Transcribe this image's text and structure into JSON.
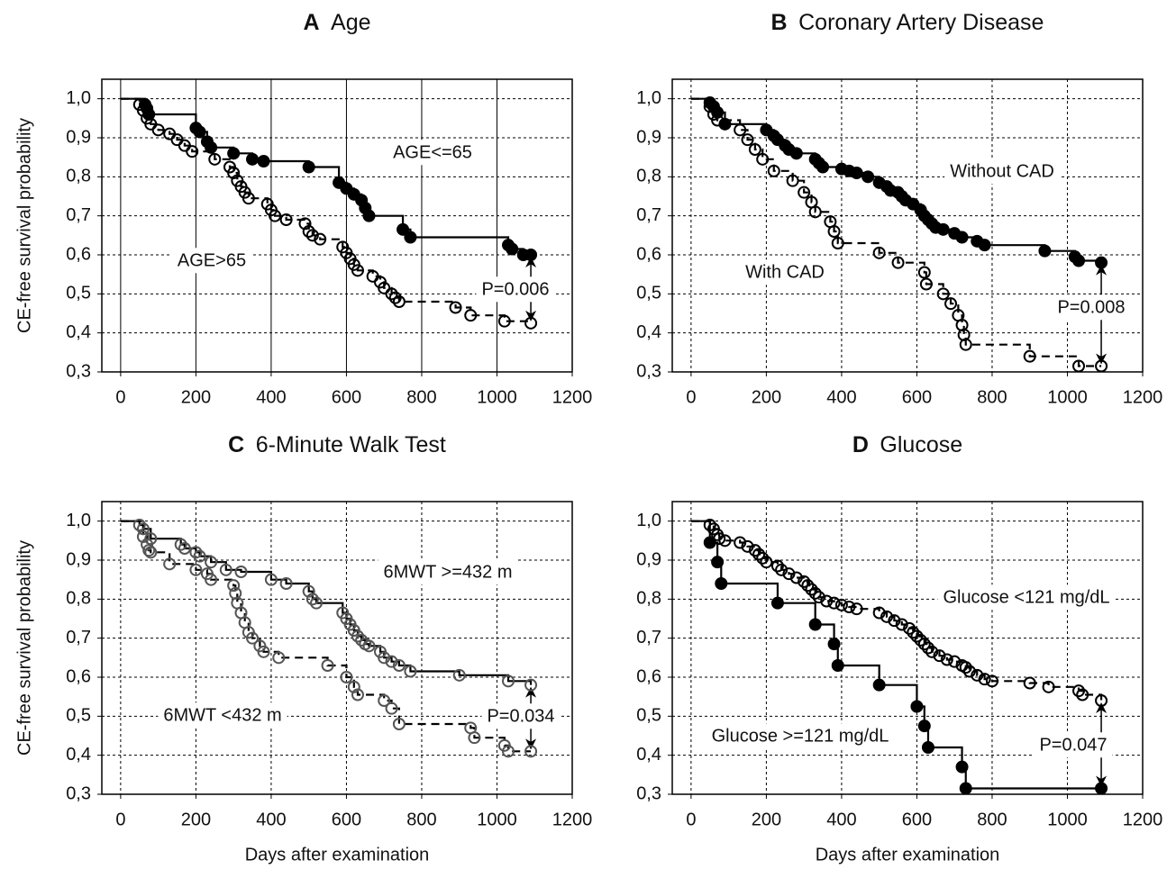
{
  "chart_data": [
    {
      "type": "step",
      "panel_label": "A",
      "title": "Age",
      "y_label": "CE-free survival probability",
      "xlim": [
        -50,
        1200
      ],
      "ylim": [
        0.3,
        1.05
      ],
      "xticks": [
        0,
        200,
        400,
        600,
        800,
        1000,
        1200
      ],
      "yticks": [
        {
          "value": 0.3,
          "label": "0,3"
        },
        {
          "value": 0.4,
          "label": "0,4"
        },
        {
          "value": 0.5,
          "label": "0,5"
        },
        {
          "value": 0.6,
          "label": "0,6"
        },
        {
          "value": 0.7,
          "label": "0,7"
        },
        {
          "value": 0.8,
          "label": "0,8"
        },
        {
          "value": 0.9,
          "label": "0,9"
        },
        {
          "value": 1.0,
          "label": "1,0"
        }
      ],
      "grid": true,
      "xgrid_style": "solid",
      "ygrid_style": "dashed",
      "annotation": "P=0.006",
      "series": [
        {
          "name": "AGE<=65",
          "color": "#000000",
          "marker": "filled",
          "line": "solid",
          "x": [
            65,
            70,
            75,
            200,
            210,
            230,
            240,
            300,
            350,
            380,
            500,
            580,
            600,
            620,
            640,
            650,
            660,
            750,
            770,
            1030,
            1040,
            1070,
            1090
          ],
          "values": [
            0.985,
            0.975,
            0.96,
            0.925,
            0.915,
            0.89,
            0.875,
            0.86,
            0.845,
            0.84,
            0.825,
            0.785,
            0.77,
            0.755,
            0.74,
            0.72,
            0.7,
            0.665,
            0.645,
            0.625,
            0.615,
            0.6,
            0.6
          ]
        },
        {
          "name": "AGE>65",
          "color": "#000000",
          "marker": "open",
          "line": "dashed",
          "x": [
            50,
            60,
            70,
            80,
            100,
            130,
            150,
            170,
            190,
            250,
            290,
            300,
            310,
            320,
            330,
            340,
            390,
            400,
            410,
            440,
            490,
            500,
            510,
            530,
            590,
            600,
            610,
            620,
            630,
            670,
            690,
            700,
            720,
            730,
            740,
            890,
            930,
            1020,
            1090
          ],
          "values": [
            0.985,
            0.97,
            0.95,
            0.935,
            0.92,
            0.91,
            0.895,
            0.88,
            0.865,
            0.845,
            0.825,
            0.81,
            0.79,
            0.775,
            0.76,
            0.745,
            0.73,
            0.715,
            0.7,
            0.69,
            0.68,
            0.66,
            0.65,
            0.64,
            0.62,
            0.605,
            0.59,
            0.575,
            0.56,
            0.545,
            0.53,
            0.515,
            0.5,
            0.49,
            0.48,
            0.465,
            0.445,
            0.43,
            0.425
          ]
        }
      ]
    },
    {
      "type": "step",
      "panel_label": "B",
      "title": "Coronary Artery Disease",
      "xlim": [
        -50,
        1200
      ],
      "ylim": [
        0.3,
        1.05
      ],
      "xticks": [
        0,
        200,
        400,
        600,
        800,
        1000,
        1200
      ],
      "yticks": [
        {
          "value": 0.3,
          "label": "0,3"
        },
        {
          "value": 0.4,
          "label": "0,4"
        },
        {
          "value": 0.5,
          "label": "0,5"
        },
        {
          "value": 0.6,
          "label": "0,6"
        },
        {
          "value": 0.7,
          "label": "0,7"
        },
        {
          "value": 0.8,
          "label": "0,8"
        },
        {
          "value": 0.9,
          "label": "0,9"
        },
        {
          "value": 1.0,
          "label": "1,0"
        }
      ],
      "grid": true,
      "xgrid_style": "dashed",
      "ygrid_style": "dashed",
      "annotation": "P=0.008",
      "series": [
        {
          "name": "Without CAD",
          "color": "#000000",
          "marker": "filled",
          "line": "solid",
          "x": [
            50,
            60,
            70,
            90,
            200,
            220,
            230,
            250,
            260,
            280,
            330,
            340,
            350,
            400,
            420,
            440,
            470,
            500,
            520,
            530,
            550,
            560,
            570,
            590,
            610,
            620,
            630,
            640,
            650,
            670,
            700,
            720,
            760,
            780,
            940,
            1020,
            1030,
            1090
          ],
          "values": [
            0.99,
            0.98,
            0.965,
            0.935,
            0.92,
            0.905,
            0.895,
            0.88,
            0.87,
            0.86,
            0.845,
            0.835,
            0.825,
            0.82,
            0.815,
            0.81,
            0.8,
            0.785,
            0.775,
            0.765,
            0.76,
            0.75,
            0.74,
            0.73,
            0.715,
            0.7,
            0.69,
            0.68,
            0.67,
            0.665,
            0.655,
            0.645,
            0.635,
            0.625,
            0.61,
            0.595,
            0.585,
            0.58
          ]
        },
        {
          "name": "With CAD",
          "color": "#000000",
          "marker": "open",
          "line": "dashed",
          "x": [
            50,
            60,
            70,
            130,
            150,
            170,
            190,
            220,
            270,
            300,
            320,
            330,
            370,
            380,
            390,
            500,
            550,
            620,
            625,
            670,
            690,
            710,
            720,
            725,
            730,
            900,
            1030,
            1090
          ],
          "values": [
            0.98,
            0.96,
            0.945,
            0.92,
            0.895,
            0.87,
            0.845,
            0.815,
            0.79,
            0.76,
            0.735,
            0.71,
            0.685,
            0.66,
            0.63,
            0.605,
            0.58,
            0.555,
            0.525,
            0.5,
            0.475,
            0.445,
            0.42,
            0.395,
            0.37,
            0.34,
            0.315,
            0.315
          ]
        }
      ]
    },
    {
      "type": "step",
      "panel_label": "C",
      "title": "6-Minute Walk Test",
      "x_label": "Days after examination",
      "y_label": "CE-free survival probability",
      "xlim": [
        -50,
        1200
      ],
      "ylim": [
        0.3,
        1.05
      ],
      "xticks": [
        0,
        200,
        400,
        600,
        800,
        1000,
        1200
      ],
      "yticks": [
        {
          "value": 0.3,
          "label": "0,3"
        },
        {
          "value": 0.4,
          "label": "0,4"
        },
        {
          "value": 0.5,
          "label": "0,5"
        },
        {
          "value": 0.6,
          "label": "0,6"
        },
        {
          "value": 0.7,
          "label": "0,7"
        },
        {
          "value": 0.8,
          "label": "0,8"
        },
        {
          "value": 0.9,
          "label": "0,9"
        },
        {
          "value": 1.0,
          "label": "1,0"
        }
      ],
      "grid": true,
      "xgrid_style": "dashed",
      "ygrid_style": "dashed",
      "annotation": "P=0.034",
      "series": [
        {
          "name": "6MWT >=432 m",
          "color": "#555555",
          "marker": "open",
          "line": "solid",
          "x": [
            50,
            60,
            80,
            160,
            170,
            200,
            210,
            240,
            280,
            320,
            400,
            440,
            500,
            510,
            520,
            590,
            600,
            610,
            620,
            630,
            640,
            650,
            660,
            690,
            700,
            720,
            740,
            770,
            900,
            1030,
            1090
          ],
          "values": [
            0.99,
            0.98,
            0.955,
            0.94,
            0.93,
            0.92,
            0.91,
            0.895,
            0.875,
            0.87,
            0.85,
            0.84,
            0.82,
            0.8,
            0.79,
            0.765,
            0.75,
            0.735,
            0.72,
            0.705,
            0.695,
            0.685,
            0.68,
            0.665,
            0.65,
            0.64,
            0.63,
            0.615,
            0.605,
            0.59,
            0.58
          ]
        },
        {
          "name": "6MWT <432 m",
          "color": "#555555",
          "marker": "open",
          "line": "dashed",
          "x": [
            60,
            70,
            75,
            80,
            130,
            200,
            230,
            240,
            300,
            305,
            310,
            320,
            330,
            340,
            350,
            370,
            380,
            420,
            550,
            600,
            620,
            630,
            700,
            720,
            740,
            930,
            940,
            1020,
            1030,
            1090
          ],
          "values": [
            0.96,
            0.94,
            0.925,
            0.92,
            0.89,
            0.875,
            0.865,
            0.85,
            0.835,
            0.815,
            0.79,
            0.765,
            0.74,
            0.715,
            0.7,
            0.68,
            0.665,
            0.65,
            0.63,
            0.6,
            0.575,
            0.555,
            0.54,
            0.52,
            0.48,
            0.47,
            0.445,
            0.425,
            0.41,
            0.41
          ]
        }
      ]
    },
    {
      "type": "step",
      "panel_label": "D",
      "title": "Glucose",
      "x_label": "Days after examination",
      "xlim": [
        -50,
        1200
      ],
      "ylim": [
        0.3,
        1.05
      ],
      "xticks": [
        0,
        200,
        400,
        600,
        800,
        1000,
        1200
      ],
      "yticks": [
        {
          "value": 0.3,
          "label": "0,3"
        },
        {
          "value": 0.4,
          "label": "0,4"
        },
        {
          "value": 0.5,
          "label": "0,5"
        },
        {
          "value": 0.6,
          "label": "0,6"
        },
        {
          "value": 0.7,
          "label": "0,7"
        },
        {
          "value": 0.8,
          "label": "0,8"
        },
        {
          "value": 0.9,
          "label": "0,9"
        },
        {
          "value": 1.0,
          "label": "1,0"
        }
      ],
      "grid": true,
      "xgrid_style": "dashed",
      "ygrid_style": "dashed",
      "annotation": "P=0.047",
      "series": [
        {
          "name": "Glucose <121 mg/dL",
          "color": "#000000",
          "marker": "open",
          "line": "dashed",
          "x": [
            50,
            60,
            70,
            75,
            90,
            130,
            150,
            170,
            180,
            190,
            200,
            230,
            240,
            260,
            280,
            300,
            310,
            320,
            330,
            340,
            360,
            380,
            400,
            420,
            440,
            500,
            520,
            540,
            560,
            580,
            590,
            600,
            610,
            620,
            630,
            640,
            660,
            680,
            700,
            720,
            730,
            740,
            760,
            780,
            800,
            900,
            950,
            1030,
            1040,
            1090
          ],
          "values": [
            0.99,
            0.98,
            0.965,
            0.955,
            0.95,
            0.945,
            0.935,
            0.925,
            0.915,
            0.905,
            0.895,
            0.885,
            0.875,
            0.865,
            0.855,
            0.845,
            0.835,
            0.825,
            0.815,
            0.805,
            0.795,
            0.79,
            0.785,
            0.78,
            0.775,
            0.765,
            0.755,
            0.745,
            0.735,
            0.725,
            0.715,
            0.705,
            0.695,
            0.685,
            0.675,
            0.665,
            0.655,
            0.645,
            0.64,
            0.63,
            0.625,
            0.615,
            0.605,
            0.595,
            0.59,
            0.585,
            0.575,
            0.565,
            0.555,
            0.54
          ]
        },
        {
          "name": "Glucose >=121 mg/dL",
          "color": "#000000",
          "marker": "filled",
          "line": "solid",
          "x": [
            50,
            70,
            80,
            230,
            330,
            380,
            390,
            500,
            600,
            620,
            630,
            720,
            730,
            1090
          ],
          "values": [
            0.945,
            0.895,
            0.84,
            0.79,
            0.735,
            0.685,
            0.63,
            0.58,
            0.525,
            0.475,
            0.42,
            0.37,
            0.315,
            0.315
          ]
        }
      ]
    }
  ]
}
